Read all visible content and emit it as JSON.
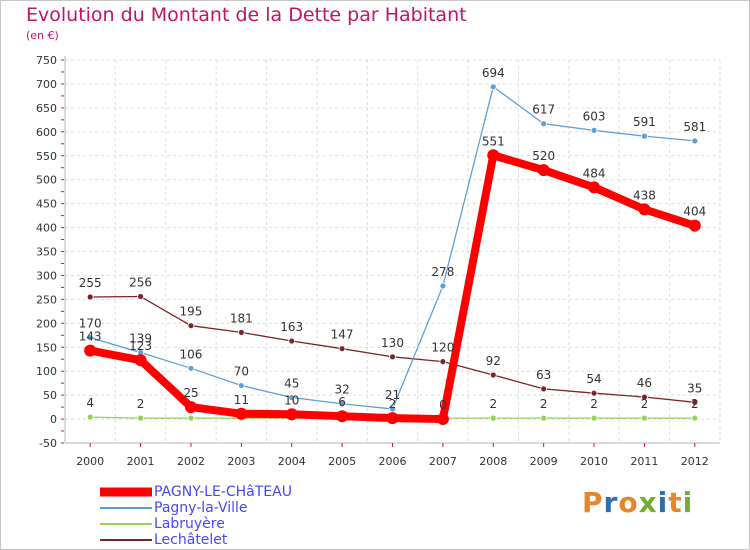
{
  "header": {
    "title": "Evolution du Montant de la Dette par Habitant",
    "subtitle": "(en €)"
  },
  "logo": {
    "text": "Proxiti",
    "colors": [
      "#e8842a",
      "#2f6fb0",
      "#e8842a",
      "#6fb02f",
      "#2f6fb0",
      "#e8842a",
      "#6fb02f"
    ]
  },
  "colors": {
    "grid": "#dcdcdc",
    "axis": "#b4b4b4",
    "tick_mark": "#c01464",
    "label": "#333333"
  },
  "chart_data": {
    "type": "line",
    "title": "Evolution du Montant de la Dette par Habitant",
    "subtitle": "(en €)",
    "x": [
      "2000",
      "2001",
      "2002",
      "2003",
      "2004",
      "2005",
      "2006",
      "2007",
      "2008",
      "2009",
      "2010",
      "2011",
      "2012"
    ],
    "ylim": [
      -50,
      750
    ],
    "yticks": [
      -50,
      0,
      50,
      100,
      150,
      200,
      250,
      300,
      350,
      400,
      450,
      500,
      550,
      600,
      650,
      700,
      750
    ],
    "grid": true,
    "legend_position": "bottom-left",
    "series": [
      {
        "name": "Lechâtelet",
        "color": "#7b2525",
        "values": [
          255,
          256,
          195,
          181,
          163,
          147,
          130,
          120,
          92,
          63,
          54,
          46,
          35
        ],
        "labels": [
          "255",
          "256",
          "195",
          "181",
          "163",
          "147",
          "130",
          "120",
          "92",
          "63",
          "54",
          "46",
          "35"
        ]
      },
      {
        "name": "Pagny-la-Ville",
        "color": "#5f9fd8",
        "values": [
          170,
          139,
          106,
          70,
          45,
          32,
          21,
          278,
          694,
          617,
          603,
          591,
          581
        ],
        "labels": [
          "170",
          "139",
          "106",
          "70",
          "45",
          "32",
          "21",
          "278",
          "694",
          "617",
          "603",
          "591",
          "581"
        ]
      },
      {
        "name": "Labruyère",
        "color": "#8fd456",
        "values": [
          4,
          2,
          2,
          2,
          2,
          2,
          2,
          2,
          2,
          2,
          2,
          2,
          2
        ],
        "labels": [
          "4",
          "2",
          "",
          "",
          "",
          "",
          "",
          "",
          "2",
          "2",
          "2",
          "2",
          "2"
        ]
      },
      {
        "name": "PAGNY-LE-CHâTEAU",
        "color": "#ff0000",
        "values": [
          143,
          123,
          25,
          11,
          10,
          6,
          2,
          0,
          551,
          520,
          484,
          438,
          404
        ],
        "labels": [
          "143",
          "123",
          "25",
          "11",
          "10",
          "6",
          "2",
          "0",
          "551",
          "520",
          "484",
          "438",
          "404"
        ]
      }
    ]
  }
}
